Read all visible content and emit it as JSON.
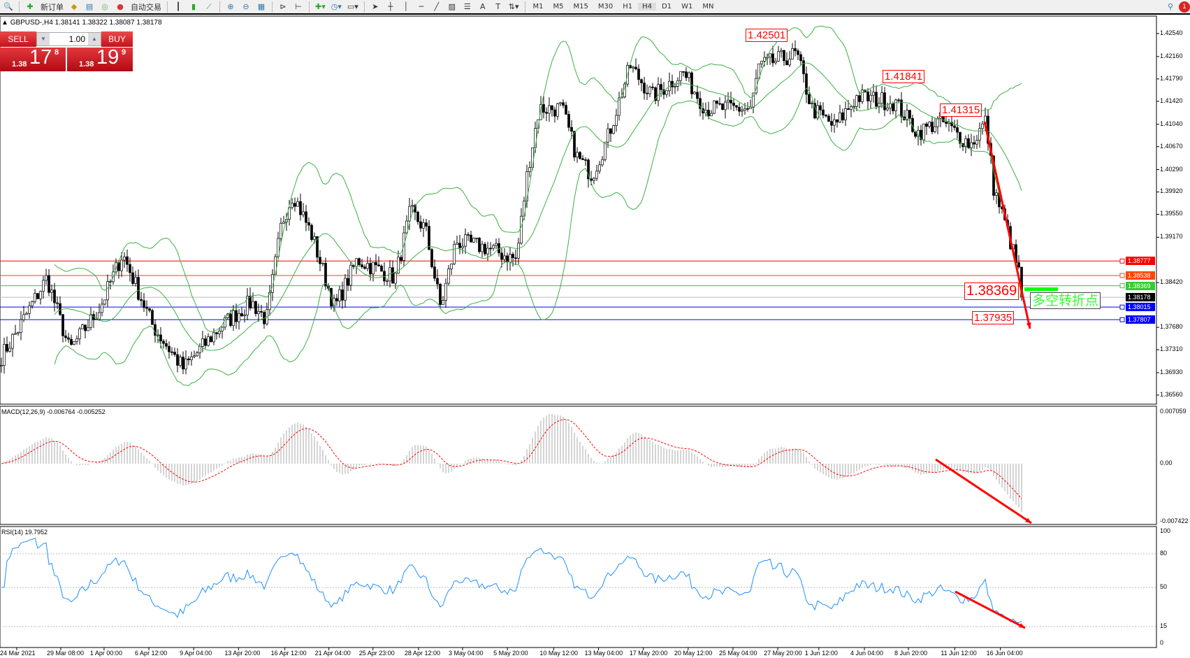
{
  "toolbar": {
    "new_order": "新订单",
    "auto_trading": "自动交易",
    "timeframes": [
      "M1",
      "M5",
      "M15",
      "M30",
      "H1",
      "H4",
      "D1",
      "W1",
      "MN"
    ],
    "active_timeframe": "H4"
  },
  "symbol_info": "GBPUSD-,H4  1.38141 1.38322 1.38087 1.38178",
  "trade_panel": {
    "sell": "SELL",
    "buy": "BUY",
    "lot": "1.00",
    "sell_prefix": "1.38",
    "sell_big": "17",
    "sell_sup": "8",
    "buy_prefix": "1.38",
    "buy_big": "19",
    "buy_sup": "9"
  },
  "price_axis": [
    "1.42540",
    "1.42160",
    "1.41790",
    "1.41420",
    "1.41040",
    "1.40670",
    "1.40290",
    "1.39920",
    "1.39550",
    "1.39170",
    "1.38420",
    "1.37680",
    "1.37310",
    "1.36930",
    "1.36560"
  ],
  "hlines": [
    {
      "price": "1.38777",
      "color": "#ff0000"
    },
    {
      "price": "1.38538",
      "color": "#ff4500"
    },
    {
      "price": "1.38369",
      "color": "#32cd32"
    },
    {
      "price": "1.38178",
      "color": "#000000"
    },
    {
      "price": "1.38015",
      "color": "#0000ff"
    },
    {
      "price": "1.37807",
      "color": "#0000ff"
    }
  ],
  "annotations": {
    "high1": "1.42501",
    "high2": "1.41841",
    "high3": "1.41315",
    "pivot": "1.38369",
    "low": "1.37935",
    "pivot_text": "多空转折点"
  },
  "macd": {
    "label": "MACD(12,26,9) -0.006764 -0.005252",
    "axis": [
      "0.007059",
      "0.00",
      "-0.007422"
    ]
  },
  "rsi": {
    "label": "RSI(14) 19.7952",
    "axis": [
      "100",
      "80",
      "50",
      "15",
      "0"
    ]
  },
  "time_axis": [
    "24 Mar 2021",
    "29 Mar 08:00",
    "1 Apr 00:00",
    "6 Apr 12:00",
    "9 Apr 04:00",
    "13 Apr 20:00",
    "16 Apr 12:00",
    "21 Apr 04:00",
    "25 Apr 23:00",
    "28 Apr 12:00",
    "3 May 04:00",
    "5 May 20:00",
    "10 May 12:00",
    "13 May 04:00",
    "17 May 20:00",
    "20 May 12:00",
    "25 May 04:00",
    "27 May 20:00",
    "1 Jun 12:00",
    "4 Jun 04:00",
    "8 Jun 20:00",
    "11 Jun 12:00",
    "16 Jun 04:00"
  ],
  "colors": {
    "bull_bear_candle": "#000000",
    "bollinger": "#3cb043",
    "macd_signal": "#ff0000",
    "rsi": "#1e90ff",
    "arrow": "#ff0000"
  }
}
